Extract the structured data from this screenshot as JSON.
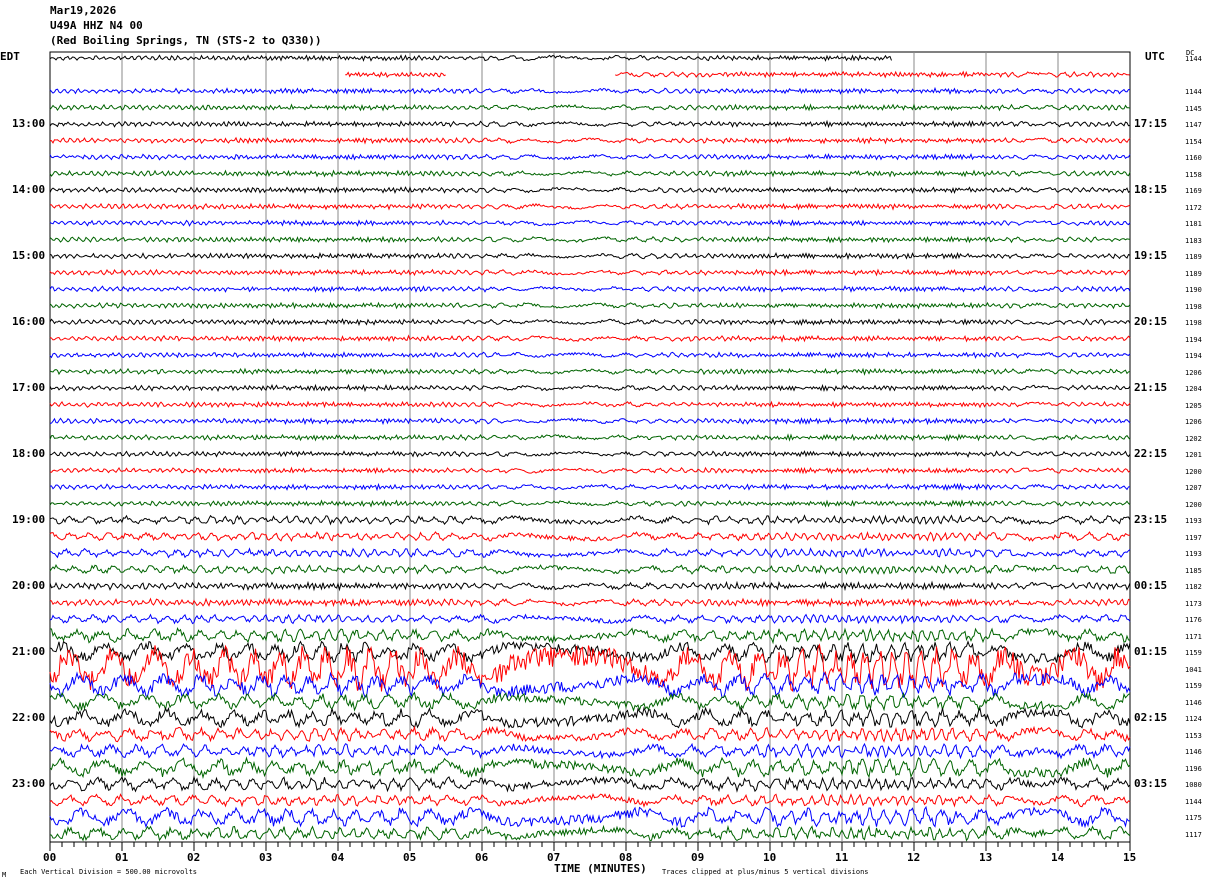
{
  "header": {
    "date": "Mar19,2026",
    "station": "U49A HHZ N4 00",
    "location": "(Red Boiling Springs, TN (STS-2 to Q330))"
  },
  "left_tz": "EDT",
  "right_tz": "UTC",
  "dc_heading": "DC",
  "left_labels": [
    {
      "row": 4,
      "text": "13:00"
    },
    {
      "row": 8,
      "text": "14:00"
    },
    {
      "row": 12,
      "text": "15:00"
    },
    {
      "row": 16,
      "text": "16:00"
    },
    {
      "row": 20,
      "text": "17:00"
    },
    {
      "row": 24,
      "text": "18:00"
    },
    {
      "row": 28,
      "text": "19:00"
    },
    {
      "row": 32,
      "text": "20:00"
    },
    {
      "row": 36,
      "text": "21:00"
    },
    {
      "row": 40,
      "text": "22:00"
    },
    {
      "row": 44,
      "text": "23:00"
    }
  ],
  "right_labels": [
    {
      "row": 4,
      "text": "17:15"
    },
    {
      "row": 8,
      "text": "18:15"
    },
    {
      "row": 12,
      "text": "19:15"
    },
    {
      "row": 16,
      "text": "20:15"
    },
    {
      "row": 20,
      "text": "21:15"
    },
    {
      "row": 24,
      "text": "22:15"
    },
    {
      "row": 28,
      "text": "23:15"
    },
    {
      "row": 32,
      "text": "00:15"
    },
    {
      "row": 36,
      "text": "01:15"
    },
    {
      "row": 40,
      "text": "02:15"
    },
    {
      "row": 44,
      "text": "03:15"
    }
  ],
  "footer": {
    "scale": "Each Vertical Division =  500.00 microvolts",
    "clip": "Traces clipped at plus/minus 5 vertical divisions",
    "logo": "M"
  },
  "chart_data": {
    "type": "line",
    "title": "U49A HHZ N4 00 helicorder",
    "xlabel": "TIME (MINUTES)",
    "xlim": [
      0,
      15
    ],
    "xticks": [
      "00",
      "01",
      "02",
      "03",
      "04",
      "05",
      "06",
      "07",
      "08",
      "09",
      "10",
      "11",
      "12",
      "13",
      "14",
      "15"
    ],
    "colors": [
      "#000000",
      "#ff0000",
      "#0000ff",
      "#006400"
    ],
    "dc_offsets": [
      "1144",
      "",
      "1144",
      "1145",
      "1147",
      "1154",
      "1160",
      "1158",
      "1169",
      "1172",
      "1181",
      "1183",
      "1189",
      "1189",
      "1190",
      "1198",
      "1198",
      "1194",
      "1194",
      "1206",
      "1204",
      "1205",
      "1206",
      "1202",
      "1201",
      "1200",
      "1207",
      "1200",
      "1193",
      "1197",
      "1193",
      "1185",
      "1182",
      "1173",
      "1176",
      "1171",
      "1159",
      "1041",
      "1159",
      "1146",
      "1124",
      "1153",
      "1146",
      "1196",
      "1080",
      "1144",
      "1175",
      "1117"
    ],
    "amplitude_divisions": [
      0.15,
      0.15,
      0.15,
      0.15,
      0.15,
      0.15,
      0.15,
      0.15,
      0.15,
      0.15,
      0.15,
      0.15,
      0.15,
      0.15,
      0.15,
      0.15,
      0.15,
      0.15,
      0.15,
      0.15,
      0.15,
      0.15,
      0.15,
      0.15,
      0.15,
      0.15,
      0.15,
      0.15,
      0.25,
      0.25,
      0.25,
      0.25,
      0.2,
      0.2,
      0.25,
      0.4,
      0.6,
      1.3,
      0.7,
      0.5,
      0.55,
      0.4,
      0.4,
      0.55,
      0.4,
      0.35,
      0.55,
      0.4
    ],
    "row0_end_minute": 11.7,
    "row1_segments": [
      [
        4.1,
        5.5
      ],
      [
        7.85,
        15
      ]
    ]
  }
}
